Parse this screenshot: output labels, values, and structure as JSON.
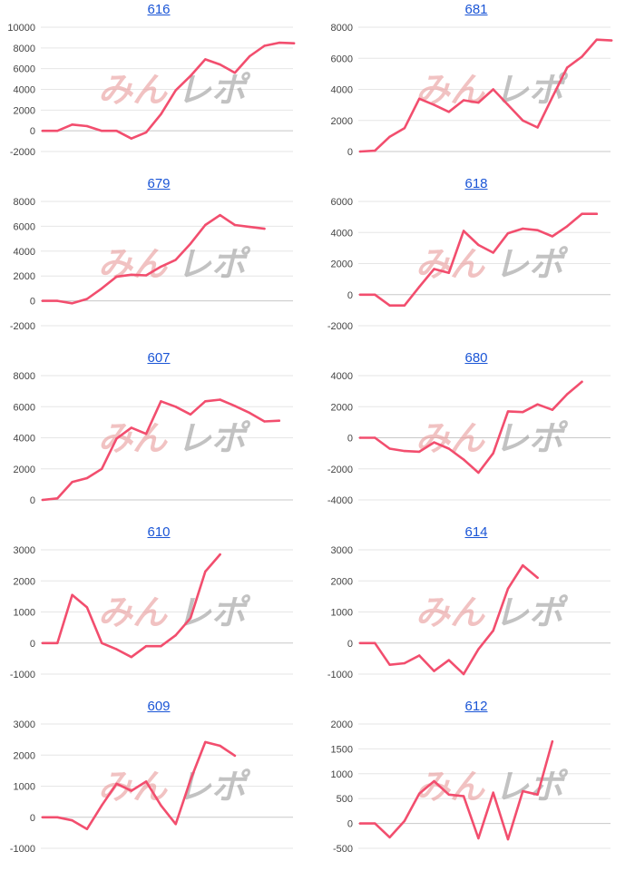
{
  "colors": {
    "line": "#f24e6e",
    "title_link": "#1a55d6"
  },
  "watermark": {
    "left": "みん",
    "right": "レポ"
  },
  "chart_data": [
    {
      "type": "line",
      "title": "616",
      "ylim": [
        -2000,
        10000
      ],
      "yticks": [
        -2000,
        0,
        2000,
        4000,
        6000,
        8000,
        10000
      ],
      "values": [
        0,
        0,
        600,
        450,
        0,
        0,
        -750,
        -150,
        1600,
        3900,
        5300,
        6900,
        6400,
        5600,
        7200,
        8200,
        8500,
        8450
      ]
    },
    {
      "type": "line",
      "title": "681",
      "ylim": [
        0,
        8000
      ],
      "yticks": [
        0,
        2000,
        4000,
        6000,
        8000
      ],
      "values": [
        0,
        50,
        950,
        1500,
        3400,
        3000,
        2550,
        3300,
        3150,
        4000,
        3000,
        2000,
        1550,
        3500,
        5400,
        6100,
        7200,
        7150
      ]
    },
    {
      "type": "line",
      "title": "679",
      "ylim": [
        -2000,
        8000
      ],
      "yticks": [
        -2000,
        0,
        2000,
        4000,
        6000,
        8000
      ],
      "values": [
        0,
        0,
        -200,
        150,
        1000,
        1950,
        2100,
        2050,
        2750,
        3300,
        4600,
        6100,
        6900,
        6100,
        5950,
        5800
      ]
    },
    {
      "type": "line",
      "title": "618",
      "ylim": [
        -2000,
        6000
      ],
      "yticks": [
        -2000,
        0,
        2000,
        4000,
        6000
      ],
      "values": [
        0,
        0,
        -700,
        -700,
        500,
        1650,
        1400,
        4100,
        3200,
        2700,
        3950,
        4250,
        4150,
        3750,
        4400,
        5200,
        5200
      ]
    },
    {
      "type": "line",
      "title": "607",
      "ylim": [
        0,
        8000
      ],
      "yticks": [
        0,
        2000,
        4000,
        6000,
        8000
      ],
      "values": [
        0,
        100,
        1150,
        1400,
        2000,
        3950,
        4650,
        4250,
        6350,
        6000,
        5500,
        6350,
        6450,
        6050,
        5600,
        5050,
        5100
      ]
    },
    {
      "type": "line",
      "title": "680",
      "ylim": [
        -4000,
        4000
      ],
      "yticks": [
        -4000,
        -2000,
        0,
        2000,
        4000
      ],
      "values": [
        0,
        0,
        -700,
        -850,
        -900,
        -300,
        -700,
        -1400,
        -2250,
        -1000,
        1700,
        1650,
        2150,
        1800,
        2800,
        3600
      ]
    },
    {
      "type": "line",
      "title": "610",
      "ylim": [
        -1000,
        3000
      ],
      "yticks": [
        -1000,
        0,
        1000,
        2000,
        3000
      ],
      "values": [
        0,
        0,
        1550,
        1150,
        0,
        -200,
        -450,
        -100,
        -100,
        250,
        800,
        2300,
        2850
      ]
    },
    {
      "type": "line",
      "title": "614",
      "ylim": [
        -1000,
        3000
      ],
      "yticks": [
        -1000,
        0,
        1000,
        2000,
        3000
      ],
      "values": [
        0,
        0,
        -700,
        -650,
        -400,
        -900,
        -550,
        -1000,
        -200,
        400,
        1750,
        2500,
        2100
      ]
    },
    {
      "type": "line",
      "title": "609",
      "ylim": [
        -1000,
        3000
      ],
      "yticks": [
        -1000,
        0,
        1000,
        2000,
        3000
      ],
      "values": [
        0,
        0,
        -100,
        -380,
        380,
        1080,
        850,
        1150,
        380,
        -220,
        1200,
        2420,
        2300,
        1980
      ]
    },
    {
      "type": "line",
      "title": "612",
      "ylim": [
        -500,
        2000
      ],
      "yticks": [
        -500,
        0,
        500,
        1000,
        1500,
        2000
      ],
      "values": [
        0,
        0,
        -280,
        50,
        600,
        850,
        580,
        550,
        -300,
        620,
        -320,
        650,
        580,
        1650
      ]
    }
  ]
}
